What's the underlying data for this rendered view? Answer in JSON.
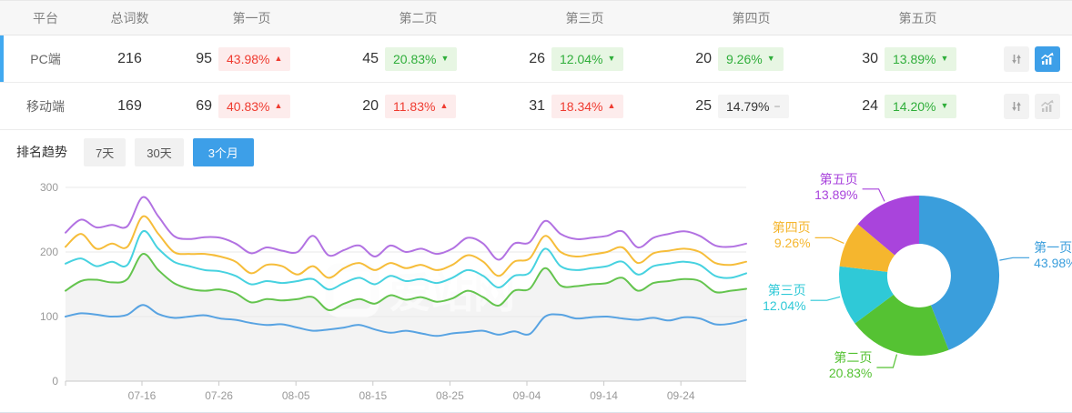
{
  "table": {
    "headers": {
      "platform": "平台",
      "total": "总词数",
      "p1": "第一页",
      "p2": "第二页",
      "p3": "第三页",
      "p4": "第四页",
      "p5": "第五页"
    },
    "rows": [
      {
        "platform": "PC端",
        "total": "216",
        "selected": true,
        "chart_active": true,
        "pages": [
          {
            "count": "95",
            "pct": "43.98%",
            "trend": "up"
          },
          {
            "count": "45",
            "pct": "20.83%",
            "trend": "down"
          },
          {
            "count": "26",
            "pct": "12.04%",
            "trend": "down"
          },
          {
            "count": "20",
            "pct": "9.26%",
            "trend": "down"
          },
          {
            "count": "30",
            "pct": "13.89%",
            "trend": "down"
          }
        ]
      },
      {
        "platform": "移动端",
        "total": "169",
        "selected": false,
        "chart_active": false,
        "pages": [
          {
            "count": "69",
            "pct": "40.83%",
            "trend": "up"
          },
          {
            "count": "20",
            "pct": "11.83%",
            "trend": "up"
          },
          {
            "count": "31",
            "pct": "18.34%",
            "trend": "up"
          },
          {
            "count": "25",
            "pct": "14.79%",
            "trend": "flat"
          },
          {
            "count": "24",
            "pct": "14.20%",
            "trend": "down"
          }
        ]
      }
    ]
  },
  "trend": {
    "title": "排名趋势",
    "tabs": [
      {
        "label": "7天",
        "active": false
      },
      {
        "label": "30天",
        "active": false
      },
      {
        "label": "3个月",
        "active": true
      }
    ]
  },
  "watermark": "爱站网",
  "arrows": {
    "up": "▲",
    "down": "▼",
    "flat": "−"
  },
  "colors": {
    "accent_blue": "#3d9fe8",
    "up_red": "#ef3b30",
    "down_green": "#2fae3a",
    "row_indicator": "#41a9f0"
  },
  "chart_data": [
    {
      "type": "line",
      "title": "排名趋势 (3个月)",
      "x_ticks": [
        "07-16",
        "07-26",
        "08-05",
        "08-15",
        "08-25",
        "09-04",
        "09-14",
        "09-24"
      ],
      "y_ticks": [
        0,
        100,
        200,
        300
      ],
      "ylim": [
        0,
        300
      ],
      "grid": true,
      "series": [
        {
          "name": "第一页",
          "color": "#58a3e2",
          "values": [
            100,
            105,
            103,
            100,
            103,
            118,
            104,
            98,
            100,
            102,
            97,
            95,
            90,
            87,
            88,
            83,
            78,
            80,
            83,
            87,
            80,
            75,
            78,
            74,
            70,
            74,
            76,
            78,
            72,
            77,
            73,
            100,
            103,
            97,
            99,
            100,
            97,
            95,
            98,
            94,
            99,
            97,
            88,
            89,
            95
          ]
        },
        {
          "name": "第二页",
          "color": "#64c44e",
          "area_fill": "#f3f3f3",
          "values": [
            140,
            155,
            157,
            153,
            158,
            197,
            172,
            152,
            143,
            140,
            142,
            136,
            122,
            127,
            125,
            127,
            130,
            110,
            120,
            127,
            120,
            133,
            126,
            130,
            123,
            128,
            140,
            130,
            117,
            140,
            143,
            175,
            148,
            147,
            150,
            152,
            160,
            140,
            152,
            155,
            158,
            155,
            138,
            140,
            143
          ]
        },
        {
          "name": "第三页",
          "color": "#47d2e0",
          "values": [
            182,
            190,
            178,
            185,
            180,
            232,
            205,
            185,
            178,
            172,
            170,
            163,
            150,
            155,
            152,
            155,
            158,
            142,
            152,
            160,
            150,
            163,
            155,
            158,
            152,
            160,
            172,
            163,
            145,
            163,
            168,
            205,
            178,
            172,
            175,
            178,
            185,
            165,
            178,
            182,
            185,
            180,
            163,
            160,
            167
          ]
        },
        {
          "name": "第四页",
          "color": "#f6bd3a",
          "values": [
            208,
            228,
            205,
            213,
            208,
            255,
            228,
            200,
            197,
            197,
            193,
            185,
            167,
            180,
            178,
            165,
            178,
            160,
            175,
            183,
            172,
            183,
            175,
            180,
            172,
            180,
            195,
            185,
            163,
            185,
            190,
            225,
            200,
            193,
            196,
            200,
            207,
            183,
            198,
            202,
            205,
            200,
            183,
            180,
            185
          ]
        },
        {
          "name": "第五页",
          "color": "#b272e2",
          "values": [
            230,
            250,
            238,
            242,
            240,
            285,
            255,
            225,
            220,
            223,
            222,
            213,
            198,
            207,
            202,
            200,
            225,
            195,
            203,
            210,
            193,
            210,
            200,
            205,
            197,
            205,
            222,
            213,
            188,
            213,
            215,
            248,
            228,
            220,
            222,
            225,
            232,
            207,
            222,
            228,
            232,
            225,
            210,
            208,
            213
          ]
        }
      ]
    },
    {
      "type": "donut",
      "slices": [
        {
          "label": "第一页",
          "value": 43.98,
          "display": "43.98%",
          "color": "#3a9edc"
        },
        {
          "label": "第二页",
          "value": 20.83,
          "display": "20.83%",
          "color": "#55c233"
        },
        {
          "label": "第三页",
          "value": 12.04,
          "display": "12.04%",
          "color": "#2fc9d7"
        },
        {
          "label": "第四页",
          "value": 9.26,
          "display": "9.26%",
          "color": "#f5b62e"
        },
        {
          "label": "第五页",
          "value": 13.89,
          "display": "13.89%",
          "color": "#a944dc"
        }
      ]
    }
  ]
}
